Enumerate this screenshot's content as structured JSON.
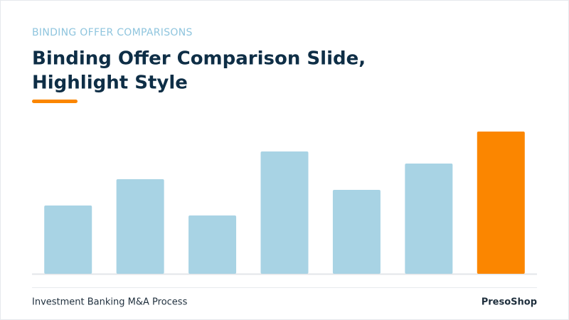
{
  "chart_data": {
    "type": "bar",
    "subtitle": "BINDING OFFER COMPARISONS",
    "title": [
      "Binding Offer Comparison Slide,",
      "Highlight Style"
    ],
    "categories": [
      null,
      null,
      null,
      null,
      null,
      null,
      null
    ],
    "values": [
      96,
      133,
      82,
      172,
      118,
      155,
      200
    ],
    "colors": [
      "#a8d3e4",
      "#a8d3e4",
      "#a8d3e4",
      "#a8d3e4",
      "#a8d3e4",
      "#a8d3e4",
      "#fb8600"
    ],
    "ylim": [
      0,
      200
    ]
  },
  "footer": {
    "left": "Investment Banking M&A Process",
    "right": "PresoShop"
  }
}
